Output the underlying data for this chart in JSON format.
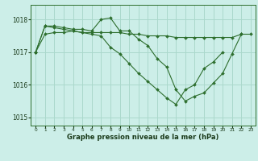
{
  "bg_color": "#cceee8",
  "grid_color": "#aad8cc",
  "line_color": "#2d6e2d",
  "marker_color": "#2d6e2d",
  "xlabel": "Graphe pression niveau de la mer (hPa)",
  "xlim": [
    -0.5,
    23.5
  ],
  "ylim": [
    1014.75,
    1018.45
  ],
  "yticks": [
    1015,
    1016,
    1017,
    1018
  ],
  "xticks": [
    0,
    1,
    2,
    3,
    4,
    5,
    6,
    7,
    8,
    9,
    10,
    11,
    12,
    13,
    14,
    15,
    16,
    17,
    18,
    19,
    20,
    21,
    22,
    23
  ],
  "series": [
    {
      "x": [
        0,
        1,
        2,
        3,
        4,
        5,
        6,
        7,
        8,
        9,
        10,
        11,
        12,
        13,
        14,
        15,
        16,
        17,
        18,
        19,
        20,
        21,
        22,
        23
      ],
      "y": [
        1017.0,
        1017.55,
        1017.6,
        1017.6,
        1017.65,
        1017.6,
        1017.6,
        1017.6,
        1017.6,
        1017.6,
        1017.55,
        1017.55,
        1017.5,
        1017.5,
        1017.5,
        1017.45,
        1017.45,
        1017.45,
        1017.45,
        1017.45,
        1017.45,
        1017.45,
        1017.55,
        1017.55
      ]
    },
    {
      "x": [
        0,
        1,
        2,
        3,
        4,
        5,
        6,
        7,
        8,
        9,
        10,
        11,
        12,
        13,
        14,
        15,
        16,
        17,
        18,
        19,
        20,
        21,
        22
      ],
      "y": [
        1017.0,
        1017.8,
        1017.8,
        1017.75,
        1017.7,
        1017.7,
        1017.65,
        1018.0,
        1018.05,
        1017.65,
        1017.65,
        1017.4,
        1017.2,
        1016.8,
        1016.55,
        1015.85,
        1015.5,
        1015.65,
        1015.75,
        1016.05,
        1016.35,
        1016.95,
        1017.55
      ]
    },
    {
      "x": [
        0,
        1,
        2,
        3,
        4,
        5,
        6,
        7,
        8,
        9,
        10,
        11,
        12,
        13,
        14,
        15,
        16,
        17,
        18,
        19,
        20
      ],
      "y": [
        1017.0,
        1017.8,
        1017.75,
        1017.7,
        1017.65,
        1017.6,
        1017.55,
        1017.5,
        1017.15,
        1016.95,
        1016.65,
        1016.35,
        1016.1,
        1015.85,
        1015.6,
        1015.4,
        1015.85,
        1016.0,
        1016.5,
        1016.7,
        1017.0
      ]
    }
  ]
}
